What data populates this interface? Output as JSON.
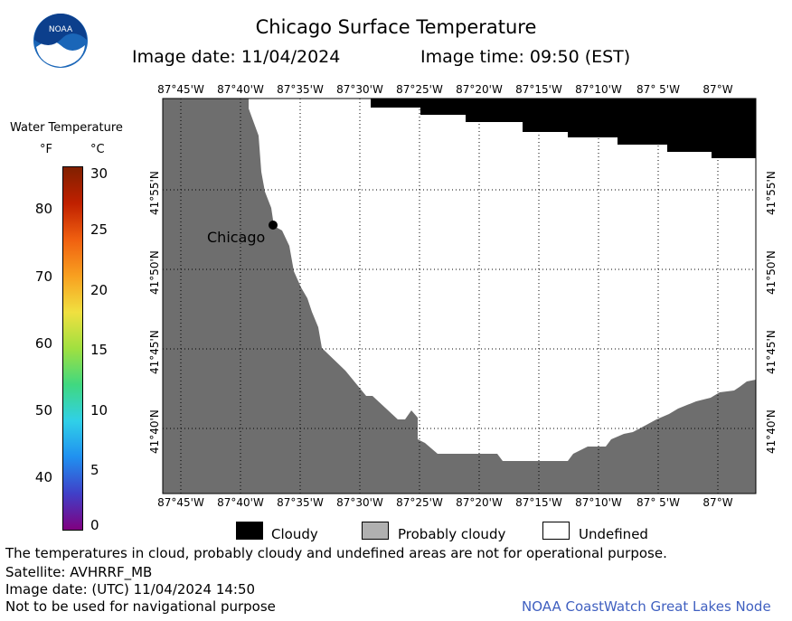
{
  "header": {
    "title": "Chicago Surface Temperature",
    "image_date": "Image date: 11/04/2024",
    "image_time": "Image time: 09:50 (EST)",
    "logo_text": "NOAA"
  },
  "legend": {
    "title": "Water Temperature",
    "unit_f": "°F",
    "unit_c": "°C",
    "f_ticks": [
      "80",
      "70",
      "60",
      "50",
      "40"
    ],
    "c_ticks": [
      "30",
      "25",
      "20",
      "15",
      "10",
      "5",
      "0"
    ],
    "colors": [
      "#800080",
      "#4040c8",
      "#2090f0",
      "#30d0e8",
      "#40d880",
      "#a0e040",
      "#f0e040",
      "#f8a020",
      "#f06010",
      "#c02000",
      "#802000"
    ]
  },
  "map": {
    "lon_labels": [
      "87°45'W",
      "87°40'W",
      "87°35'W",
      "87°30'W",
      "87°25'W",
      "87°20'W",
      "87°15'W",
      "87°10'W",
      "87° 5'W",
      "87°W"
    ],
    "lat_labels": [
      "41°55'N",
      "41°50'N",
      "41°45'N",
      "41°40'N"
    ],
    "city": "Chicago",
    "land_color": "#6e6e6e",
    "cloud_color": "#000000"
  },
  "key": {
    "cloudy": "Cloudy",
    "probably_cloudy": "Probably cloudy",
    "undefined": "Undefined"
  },
  "footer": {
    "line1": "The temperatures in cloud, probably cloudy and undefined areas are not for operational purpose.",
    "line2": "Satellite: AVHRRF_MB",
    "line3": "Image date: (UTC) 11/04/2024  14:50",
    "line4": "Not to be used for navigational purpose",
    "credit": "NOAA CoastWatch Great Lakes Node"
  }
}
